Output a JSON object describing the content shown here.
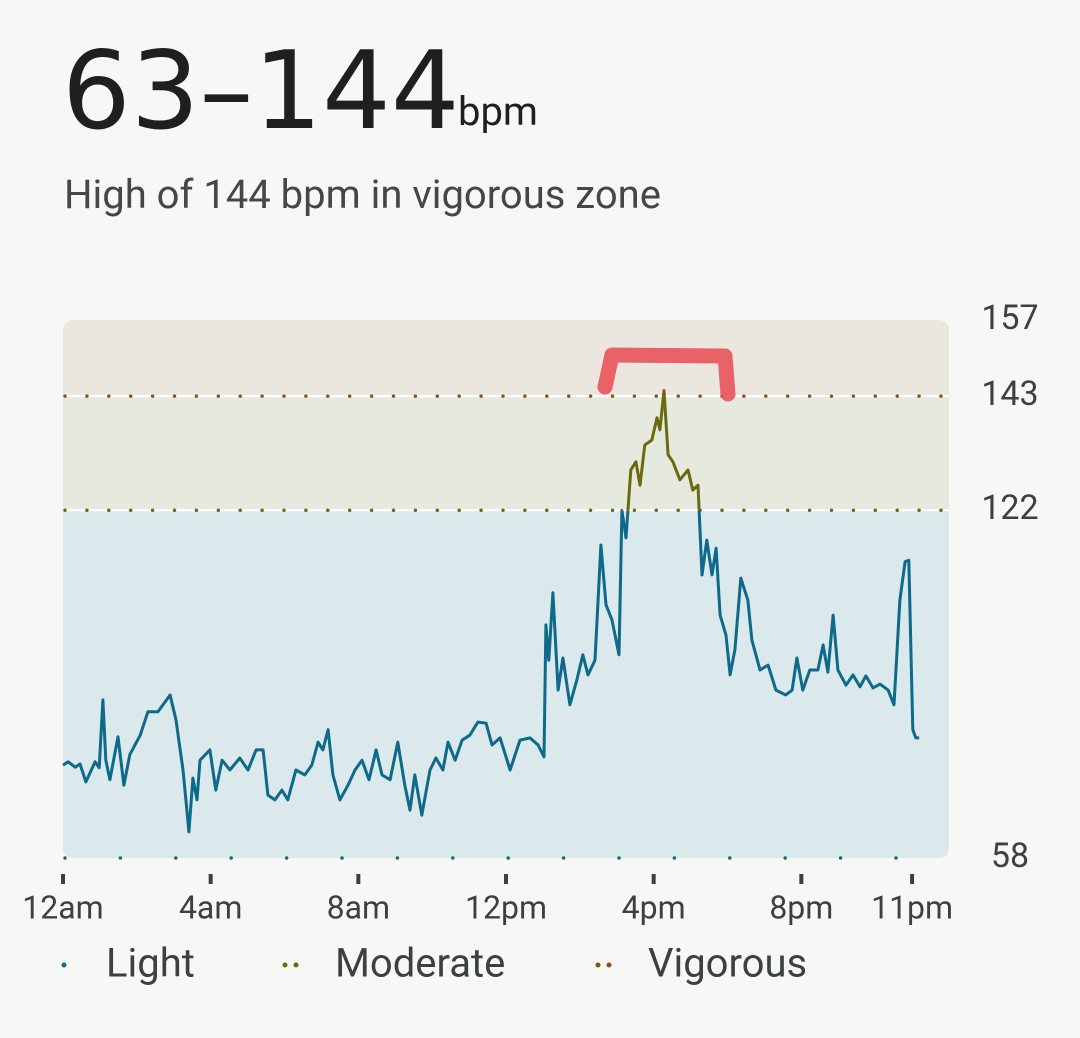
{
  "chart_data": {
    "type": "line",
    "title": "63–144",
    "unit": "bpm",
    "subtitle": "High of 144 bpm in vigorous zone",
    "xlim": [
      0,
      24
    ],
    "xticks": [
      {
        "value": 0,
        "label": "12am"
      },
      {
        "value": 4,
        "label": "4am"
      },
      {
        "value": 8,
        "label": "8am"
      },
      {
        "value": 12,
        "label": "12pm"
      },
      {
        "value": 16,
        "label": "4pm"
      },
      {
        "value": 20,
        "label": "8pm"
      },
      {
        "value": 23,
        "label": "11pm"
      }
    ],
    "ylim": [
      58,
      157
    ],
    "yticks": [
      58,
      122,
      143,
      157
    ],
    "zones": [
      {
        "name": "Light",
        "color": "#0e6a8a",
        "band": "#dbe8ec",
        "from": 58,
        "to": 122
      },
      {
        "name": "Moderate",
        "color": "#6b6a10",
        "band": "#e6e9dd",
        "from": 122,
        "to": 143
      },
      {
        "name": "Vigorous",
        "color": "#8a5418",
        "band": "#ebe7de",
        "from": 143,
        "to": 157
      }
    ],
    "x": [
      0.0,
      0.14,
      0.33,
      0.46,
      0.62,
      0.87,
      0.98,
      1.08,
      1.16,
      1.27,
      1.49,
      1.65,
      1.81,
      2.09,
      2.3,
      2.57,
      2.9,
      3.06,
      3.25,
      3.33,
      3.41,
      3.52,
      3.63,
      3.71,
      3.98,
      4.14,
      4.31,
      4.52,
      4.79,
      5.01,
      5.23,
      5.42,
      5.55,
      5.74,
      5.93,
      6.09,
      6.31,
      6.55,
      6.74,
      6.91,
      7.04,
      7.18,
      7.31,
      7.5,
      7.72,
      7.91,
      8.1,
      8.29,
      8.48,
      8.64,
      8.86,
      9.07,
      9.26,
      9.4,
      9.53,
      9.72,
      9.94,
      10.1,
      10.29,
      10.43,
      10.62,
      10.81,
      11.02,
      11.24,
      11.46,
      11.62,
      11.84,
      12.11,
      12.38,
      12.65,
      12.87,
      13.03,
      13.08,
      13.16,
      13.27,
      13.41,
      13.54,
      13.73,
      13.92,
      14.08,
      14.22,
      14.41,
      14.57,
      14.71,
      14.87,
      15.06,
      15.14,
      15.25,
      15.38,
      15.52,
      15.63,
      15.76,
      15.95,
      16.09,
      16.17,
      16.28,
      16.39,
      16.52,
      16.71,
      16.93,
      17.06,
      17.2,
      17.31,
      17.44,
      17.58,
      17.69,
      17.8,
      17.96,
      18.07,
      18.2,
      18.36,
      18.55,
      18.66,
      18.88,
      19.1,
      19.31,
      19.58,
      19.75,
      19.88,
      20.04,
      20.23,
      20.45,
      20.59,
      20.72,
      20.86,
      20.99,
      21.21,
      21.4,
      21.59,
      21.75,
      21.94,
      22.13,
      22.35,
      22.51,
      22.67,
      22.81,
      22.91,
      23.02,
      23.1,
      23.19
    ],
    "values": [
      75.1,
      75.7,
      74.7,
      75.3,
      72.0,
      75.7,
      74.6,
      87.1,
      76.0,
      72.4,
      80.3,
      71.4,
      77.0,
      80.6,
      84.9,
      84.9,
      88.0,
      83.4,
      74.2,
      68.7,
      62.8,
      72.7,
      68.7,
      76.0,
      77.9,
      70.5,
      76.0,
      74.2,
      76.4,
      74.2,
      77.9,
      77.9,
      69.6,
      68.7,
      70.5,
      68.7,
      74.2,
      73.3,
      75.1,
      79.3,
      77.9,
      81.6,
      73.3,
      68.7,
      71.4,
      74.2,
      76.0,
      72.4,
      77.9,
      73.3,
      72.4,
      79.3,
      71.4,
      66.8,
      73.3,
      65.9,
      74.2,
      76.4,
      74.2,
      79.3,
      76.0,
      79.7,
      80.6,
      83.0,
      82.8,
      78.8,
      80.1,
      74.2,
      79.7,
      80.1,
      78.8,
      76.6,
      100.9,
      94.4,
      106.8,
      88.9,
      94.8,
      86.2,
      90.8,
      95.4,
      91.7,
      94.4,
      115.6,
      104.6,
      101.8,
      95.4,
      122.0,
      116.9,
      129.4,
      130.9,
      126.6,
      134.0,
      134.9,
      139.0,
      136.8,
      144,
      132.2,
      130.9,
      127.6,
      129.4,
      125.7,
      126.6,
      110.1,
      116.5,
      110.1,
      115.0,
      102.7,
      99.0,
      91.7,
      96.3,
      109.5,
      105.5,
      98.1,
      92.6,
      93.5,
      88.9,
      88.0,
      88.9,
      94.8,
      88.9,
      92.6,
      92.6,
      97.2,
      92.2,
      102.7,
      92.6,
      89.8,
      91.7,
      89.5,
      91.5,
      89.3,
      90.0,
      88.9,
      86.2,
      105.5,
      112.5,
      112.8,
      81.6,
      80.1,
      80.1
    ]
  }
}
